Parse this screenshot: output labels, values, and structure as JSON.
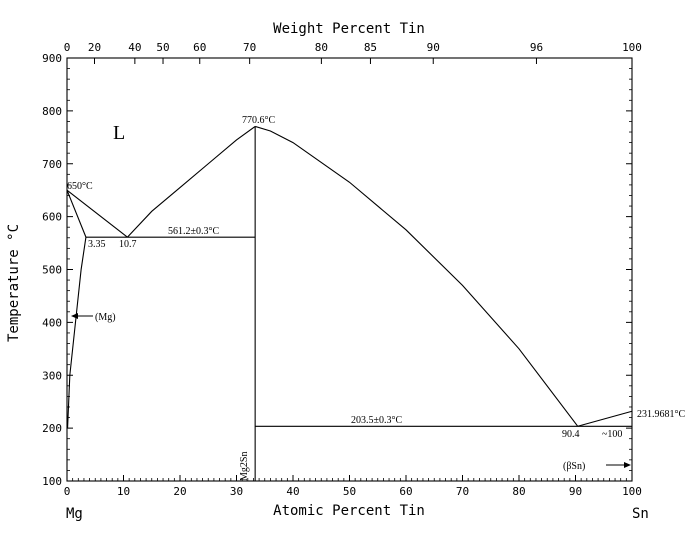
{
  "diagram": {
    "title_top": "Weight Percent Tin",
    "title_bottom": "Atomic Percent Tin",
    "ylabel": "Temperature °C",
    "element_left": "Mg",
    "element_right": "Sn",
    "x_ticks_atomic": [
      "0",
      "10",
      "20",
      "30",
      "40",
      "50",
      "60",
      "70",
      "80",
      "90",
      "100"
    ],
    "x_ticks_weight": [
      "0",
      "20",
      "40",
      "50",
      "60",
      "70",
      "80",
      "85",
      "90",
      "96",
      "100"
    ],
    "y_ticks": [
      "100",
      "200",
      "300",
      "400",
      "500",
      "600",
      "700",
      "800",
      "900"
    ],
    "labels": {
      "liquid": "L",
      "mg_melt": "650°C",
      "solubility_max": "3.35",
      "eutectic1_comp": "10.7",
      "eutectic1_temp": "561.2±0.3°C",
      "compound_melt": "770.6°C",
      "compound": "Mg2Sn",
      "eutectic2_temp": "203.5±0.3°C",
      "eutectic2_comp": "90.4",
      "sn_solubility": "~100",
      "sn_melt": "231.9681°C",
      "mg_phase": "(Mg)",
      "sn_phase": "(βSn)"
    }
  },
  "chart_data": {
    "type": "phase-diagram",
    "x_axis": {
      "label": "Atomic Percent Tin",
      "range": [
        0,
        100
      ]
    },
    "x2_axis": {
      "label": "Weight Percent Tin",
      "range": [
        0,
        100
      ]
    },
    "y_axis": {
      "label": "Temperature °C",
      "range": [
        100,
        900
      ]
    },
    "points": {
      "mg_melting": [
        0,
        650
      ],
      "eutectic1": [
        10.7,
        561.2
      ],
      "mg_max_solubility": [
        3.35,
        561.2
      ],
      "compound_congruent": [
        33.3,
        770.6
      ],
      "eutectic2": [
        90.4,
        203.5
      ],
      "sn_melting": [
        100,
        231.9681
      ]
    },
    "liquidus_curve_1": [
      [
        10.7,
        561.2
      ],
      [
        15,
        610
      ],
      [
        20,
        655
      ],
      [
        25,
        700
      ],
      [
        30,
        745
      ],
      [
        33.3,
        770.6
      ]
    ],
    "liquidus_curve_2": [
      [
        33.3,
        770.6
      ],
      [
        36,
        762
      ],
      [
        40,
        740
      ],
      [
        50,
        665
      ],
      [
        60,
        575
      ],
      [
        70,
        470
      ],
      [
        80,
        350
      ],
      [
        90.4,
        203.5
      ]
    ],
    "solvus_mg": [
      [
        3.35,
        561.2
      ],
      [
        2.5,
        500
      ],
      [
        1.5,
        400
      ],
      [
        0.5,
        300
      ],
      [
        0.1,
        200
      ]
    ]
  }
}
